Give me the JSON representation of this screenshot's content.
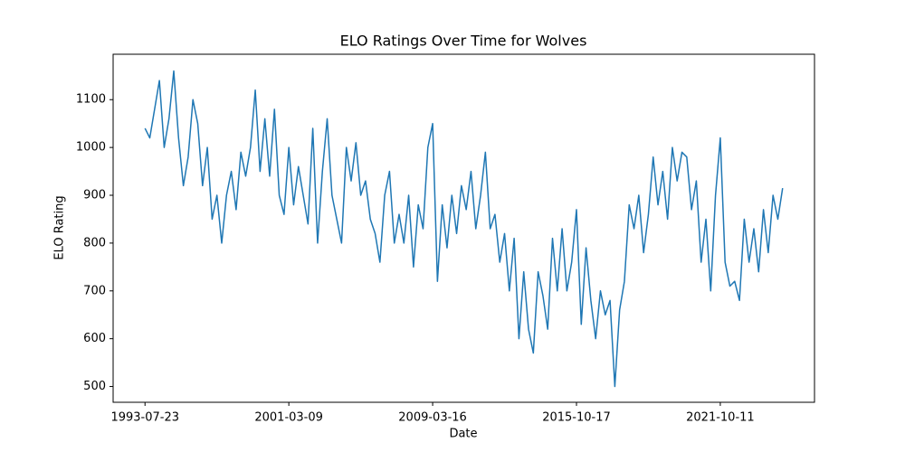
{
  "chart_data": {
    "type": "line",
    "title": "ELO Ratings Over Time for Wolves",
    "x_label": "Date",
    "y_label": "ELO Rating",
    "color": "#1f77b4",
    "categories": [
      "1993-07-23",
      null,
      null,
      null,
      null,
      null,
      null,
      null,
      null,
      null,
      null,
      null,
      null,
      null,
      null,
      null,
      null,
      null,
      null,
      null,
      null,
      null,
      null,
      null,
      null,
      null,
      null,
      null,
      null,
      null,
      "2001-03-09",
      null,
      null,
      null,
      null,
      null,
      null,
      null,
      null,
      null,
      null,
      null,
      null,
      null,
      null,
      null,
      null,
      null,
      null,
      null,
      null,
      null,
      null,
      null,
      null,
      null,
      null,
      null,
      null,
      null,
      "2009-03-16",
      null,
      null,
      null,
      null,
      null,
      null,
      null,
      null,
      null,
      null,
      null,
      null,
      null,
      null,
      null,
      null,
      null,
      null,
      null,
      null,
      null,
      null,
      null,
      null,
      null,
      null,
      null,
      null,
      null,
      "2015-10-17",
      null,
      null,
      null,
      null,
      null,
      null,
      null,
      null,
      null,
      null,
      null,
      null,
      null,
      null,
      null,
      null,
      null,
      null,
      null,
      null,
      null,
      null,
      null,
      null,
      null,
      null,
      null,
      null,
      null,
      "2021-10-11",
      null,
      null,
      null,
      null,
      null,
      null,
      null,
      null,
      null,
      null,
      null,
      null,
      null
    ],
    "values": [
      1040,
      1020,
      1080,
      1140,
      1000,
      1060,
      1160,
      1020,
      920,
      980,
      1100,
      1050,
      920,
      1000,
      850,
      900,
      800,
      900,
      950,
      870,
      990,
      940,
      1000,
      1120,
      950,
      1060,
      940,
      1080,
      900,
      860,
      1000,
      880,
      960,
      900,
      840,
      1040,
      800,
      950,
      1060,
      900,
      850,
      800,
      1000,
      930,
      1010,
      900,
      930,
      850,
      820,
      760,
      900,
      950,
      800,
      860,
      800,
      900,
      750,
      880,
      830,
      1000,
      1050,
      720,
      880,
      790,
      900,
      820,
      920,
      870,
      950,
      830,
      900,
      990,
      830,
      860,
      760,
      820,
      700,
      810,
      600,
      740,
      620,
      570,
      740,
      690,
      620,
      810,
      700,
      830,
      700,
      760,
      870,
      630,
      790,
      680,
      600,
      700,
      650,
      680,
      500,
      660,
      720,
      880,
      830,
      900,
      780,
      860,
      980,
      880,
      950,
      850,
      1000,
      930,
      990,
      980,
      870,
      930,
      760,
      850,
      700,
      900,
      1020,
      760,
      710,
      720,
      680,
      850,
      760,
      830,
      740,
      870,
      780,
      900,
      850,
      915
    ],
    "ylim": [
      467,
      1195
    ],
    "yticks": [
      500,
      600,
      700,
      800,
      900,
      1000,
      1100
    ]
  }
}
